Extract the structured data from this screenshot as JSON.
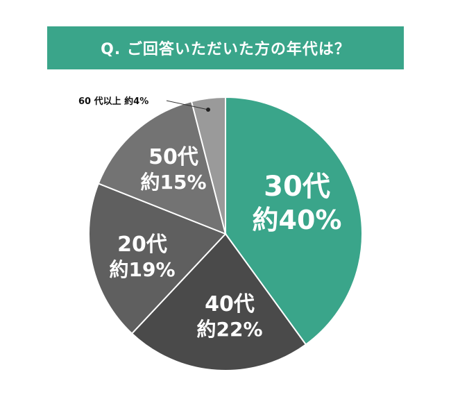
{
  "header": {
    "title": "Q. ご回答いただいた方の年代は？"
  },
  "colors": {
    "banner": "#3aa58a",
    "slice_30s": "#3aa58a",
    "slice_40s": "#4a4a4a",
    "slice_20s": "#5f5f5f",
    "slice_50s": "#737373",
    "slice_60s": "#9a9a9a"
  },
  "chart_data": {
    "type": "pie",
    "title": "Q. ご回答いただいた方の年代は？",
    "unit": "%",
    "slices": [
      {
        "label": "30代",
        "value": 40,
        "value_label": "約40%",
        "color": "#3aa58a"
      },
      {
        "label": "40代",
        "value": 22,
        "value_label": "約22%",
        "color": "#4a4a4a"
      },
      {
        "label": "20代",
        "value": 19,
        "value_label": "約19%",
        "color": "#5f5f5f"
      },
      {
        "label": "50代",
        "value": 15,
        "value_label": "約15%",
        "color": "#737373"
      },
      {
        "label": "60代以上",
        "value": 4,
        "value_label": "約4%",
        "color": "#9a9a9a"
      }
    ],
    "callout": {
      "label": "60 代以上",
      "value_label": "約4%"
    }
  }
}
